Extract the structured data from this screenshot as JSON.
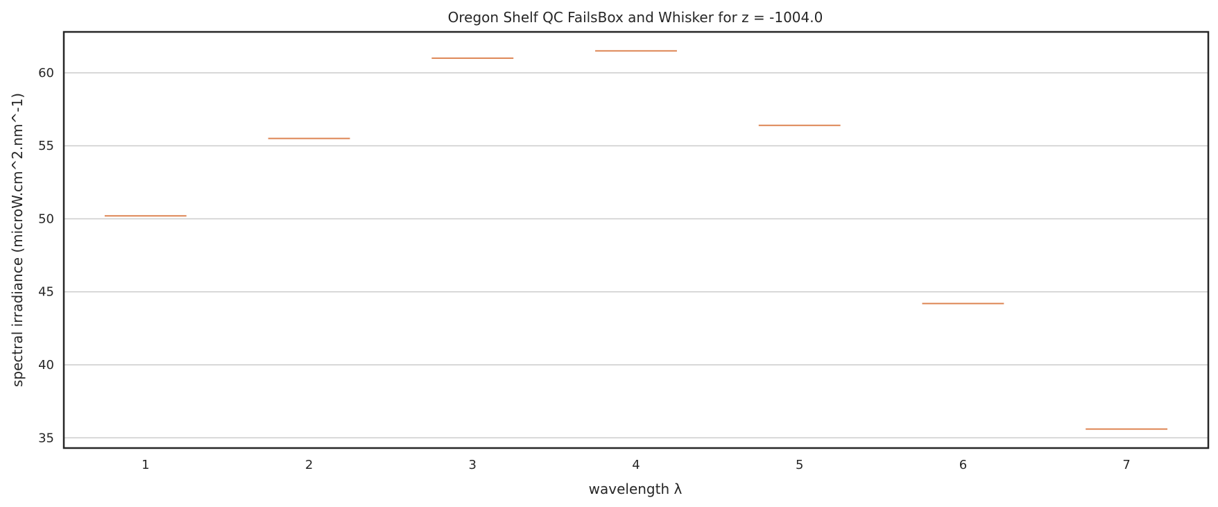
{
  "chart_data": {
    "type": "box",
    "title": "Oregon Shelf QC FailsBox and Whisker for z = -1004.0",
    "xlabel": "wavelength λ",
    "ylabel": "spectral irradiance (microW.cm^2.nm^-1)",
    "categories": [
      "1",
      "2",
      "3",
      "4",
      "5",
      "6",
      "7"
    ],
    "values": [
      50.2,
      55.5,
      61.0,
      61.5,
      56.4,
      44.2,
      35.6
    ],
    "ylim": [
      34.3,
      62.8
    ],
    "yticks": [
      35,
      40,
      45,
      50,
      55,
      60
    ],
    "grid": "horizontal",
    "colors": {
      "median": "#dd8452",
      "grid": "#cccccc",
      "frame": "#262626",
      "text": "#262626"
    }
  }
}
